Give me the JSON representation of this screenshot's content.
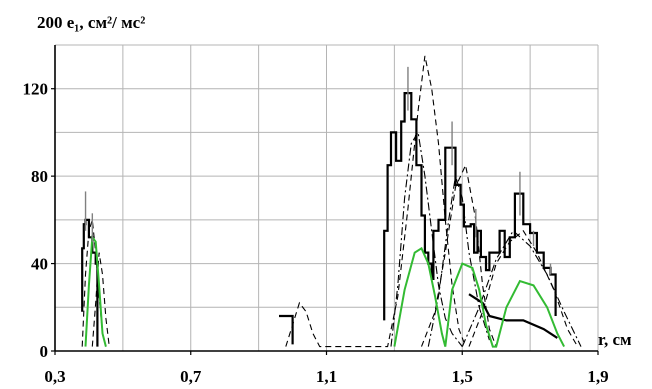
{
  "chart_data": {
    "type": "line",
    "title": "",
    "ylabel": "200 e₁, см²/ мс²",
    "xlabel": "r, см",
    "xlim": [
      0.3,
      1.9
    ],
    "ylim": [
      0,
      140
    ],
    "x_ticks": [
      0.3,
      0.7,
      1.1,
      1.5,
      1.9
    ],
    "x_tick_labels": [
      "0,3",
      "0,7",
      "1,1",
      "1,5",
      "1,9"
    ],
    "y_ticks": [
      0,
      40,
      80,
      120
    ],
    "y_tick_labels": [
      "0",
      "40",
      "80",
      "120"
    ],
    "grid": true,
    "legend": "none",
    "colors": {
      "solid": "#000000",
      "dashed": "#000000",
      "dashdot": "#000000",
      "green": "#33bb33",
      "error": "#808080"
    },
    "series": [
      {
        "style": "solid-step",
        "points": [
          [
            0.38,
            18
          ],
          [
            0.38,
            47
          ],
          [
            0.385,
            47
          ],
          [
            0.385,
            58
          ],
          [
            0.39,
            58
          ],
          [
            0.39,
            60
          ],
          [
            0.4,
            60
          ],
          [
            0.4,
            52
          ],
          [
            0.41,
            52
          ],
          [
            0.41,
            45
          ],
          [
            0.42,
            45
          ],
          [
            0.42,
            40
          ],
          [
            0.425,
            40
          ],
          [
            0.425,
            2
          ],
          [
            0.96,
            16
          ],
          [
            1.0,
            16
          ],
          [
            1.0,
            3
          ],
          [
            1.27,
            14
          ],
          [
            1.27,
            55
          ],
          [
            1.28,
            55
          ],
          [
            1.28,
            85
          ],
          [
            1.29,
            85
          ],
          [
            1.29,
            100
          ],
          [
            1.305,
            100
          ],
          [
            1.305,
            87
          ],
          [
            1.32,
            87
          ],
          [
            1.32,
            105
          ],
          [
            1.33,
            105
          ],
          [
            1.33,
            118
          ],
          [
            1.35,
            118
          ],
          [
            1.35,
            106
          ],
          [
            1.365,
            106
          ],
          [
            1.365,
            85
          ],
          [
            1.38,
            85
          ],
          [
            1.38,
            62
          ],
          [
            1.39,
            62
          ],
          [
            1.39,
            45
          ],
          [
            1.4,
            45
          ],
          [
            1.4,
            40
          ],
          [
            1.41,
            40
          ],
          [
            1.41,
            33
          ],
          [
            1.415,
            33
          ],
          [
            1.415,
            55
          ],
          [
            1.43,
            55
          ],
          [
            1.43,
            60
          ],
          [
            1.45,
            60
          ],
          [
            1.45,
            93
          ],
          [
            1.48,
            93
          ],
          [
            1.48,
            76
          ],
          [
            1.495,
            76
          ],
          [
            1.495,
            67
          ],
          [
            1.505,
            67
          ],
          [
            1.505,
            57
          ],
          [
            1.525,
            57
          ],
          [
            1.525,
            58
          ],
          [
            1.535,
            58
          ],
          [
            1.535,
            45
          ],
          [
            1.545,
            45
          ],
          [
            1.545,
            55
          ],
          [
            1.555,
            55
          ],
          [
            1.555,
            43
          ],
          [
            1.57,
            43
          ],
          [
            1.57,
            37
          ],
          [
            1.58,
            37
          ],
          [
            1.58,
            45
          ],
          [
            1.61,
            45
          ],
          [
            1.61,
            55
          ],
          [
            1.625,
            55
          ],
          [
            1.625,
            43
          ],
          [
            1.64,
            43
          ],
          [
            1.64,
            52
          ],
          [
            1.655,
            52
          ],
          [
            1.655,
            72
          ],
          [
            1.68,
            72
          ],
          [
            1.68,
            58
          ],
          [
            1.7,
            58
          ],
          [
            1.7,
            54
          ],
          [
            1.72,
            54
          ],
          [
            1.72,
            45
          ],
          [
            1.74,
            45
          ],
          [
            1.74,
            38
          ],
          [
            1.76,
            38
          ],
          [
            1.76,
            35
          ],
          [
            1.775,
            35
          ],
          [
            1.775,
            16
          ],
          [
            1.52,
            26
          ],
          [
            1.56,
            22
          ],
          [
            1.58,
            16
          ],
          [
            1.63,
            14
          ],
          [
            1.68,
            14
          ],
          [
            1.74,
            10
          ],
          [
            1.78,
            6
          ]
        ]
      },
      {
        "style": "dashed",
        "points": [
          [
            0.38,
            2
          ],
          [
            0.39,
            35
          ],
          [
            0.4,
            55
          ],
          [
            0.41,
            60
          ],
          [
            0.42,
            45
          ],
          [
            0.43,
            25
          ],
          [
            0.44,
            8
          ],
          [
            0.45,
            2
          ],
          [
            0.41,
            2
          ],
          [
            0.42,
            22
          ],
          [
            0.43,
            45
          ],
          [
            0.44,
            35
          ],
          [
            0.45,
            15
          ],
          [
            0.46,
            2
          ],
          [
            0.98,
            2
          ],
          [
            1.0,
            12
          ],
          [
            1.02,
            22
          ],
          [
            1.04,
            18
          ],
          [
            1.06,
            8
          ],
          [
            1.08,
            2
          ],
          [
            1.28,
            2
          ],
          [
            1.31,
            25
          ],
          [
            1.34,
            65
          ],
          [
            1.37,
            110
          ],
          [
            1.39,
            135
          ],
          [
            1.41,
            120
          ],
          [
            1.43,
            95
          ],
          [
            1.45,
            60
          ],
          [
            1.47,
            30
          ],
          [
            1.49,
            10
          ],
          [
            1.51,
            2
          ],
          [
            1.38,
            2
          ],
          [
            1.42,
            18
          ],
          [
            1.45,
            45
          ],
          [
            1.48,
            75
          ],
          [
            1.51,
            85
          ],
          [
            1.54,
            60
          ],
          [
            1.56,
            30
          ],
          [
            1.58,
            10
          ],
          [
            1.6,
            2
          ],
          [
            1.52,
            2
          ],
          [
            1.56,
            18
          ],
          [
            1.6,
            40
          ],
          [
            1.64,
            50
          ],
          [
            1.68,
            55
          ],
          [
            1.72,
            45
          ],
          [
            1.77,
            28
          ],
          [
            1.81,
            10
          ],
          [
            1.84,
            2
          ]
        ]
      },
      {
        "style": "dash-dot",
        "points": [
          [
            1.29,
            2
          ],
          [
            1.31,
            30
          ],
          [
            1.33,
            70
          ],
          [
            1.35,
            95
          ],
          [
            1.37,
            100
          ],
          [
            1.39,
            80
          ],
          [
            1.41,
            55
          ],
          [
            1.43,
            30
          ],
          [
            1.45,
            15
          ],
          [
            1.47,
            8
          ],
          [
            1.5,
            2
          ],
          [
            1.4,
            2
          ],
          [
            1.43,
            25
          ],
          [
            1.46,
            60
          ],
          [
            1.48,
            80
          ],
          [
            1.5,
            70
          ],
          [
            1.52,
            45
          ],
          [
            1.55,
            20
          ],
          [
            1.58,
            5
          ],
          [
            1.5,
            2
          ],
          [
            1.55,
            20
          ],
          [
            1.6,
            42
          ],
          [
            1.65,
            55
          ],
          [
            1.7,
            48
          ],
          [
            1.75,
            35
          ],
          [
            1.8,
            18
          ],
          [
            1.85,
            2
          ]
        ]
      },
      {
        "style": "green",
        "points": [
          [
            0.39,
            2
          ],
          [
            0.4,
            30
          ],
          [
            0.41,
            52
          ],
          [
            0.42,
            50
          ],
          [
            0.43,
            30
          ],
          [
            0.44,
            8
          ],
          [
            0.45,
            2
          ],
          [
            1.3,
            2
          ],
          [
            1.33,
            28
          ],
          [
            1.36,
            45
          ],
          [
            1.38,
            47
          ],
          [
            1.4,
            40
          ],
          [
            1.42,
            25
          ],
          [
            1.44,
            8
          ],
          [
            1.45,
            2
          ],
          [
            1.45,
            2
          ],
          [
            1.47,
            28
          ],
          [
            1.5,
            40
          ],
          [
            1.53,
            38
          ],
          [
            1.55,
            28
          ],
          [
            1.57,
            12
          ],
          [
            1.59,
            2
          ],
          [
            1.6,
            2
          ],
          [
            1.63,
            20
          ],
          [
            1.67,
            32
          ],
          [
            1.71,
            30
          ],
          [
            1.75,
            20
          ],
          [
            1.78,
            8
          ],
          [
            1.8,
            2
          ]
        ]
      }
    ],
    "error_bars": [
      {
        "x": 0.39,
        "y_low": 55,
        "y_high": 73
      },
      {
        "x": 0.41,
        "y_low": 50,
        "y_high": 63
      },
      {
        "x": 1.34,
        "y_low": 110,
        "y_high": 130
      },
      {
        "x": 1.47,
        "y_low": 85,
        "y_high": 105
      },
      {
        "x": 1.54,
        "y_low": 52,
        "y_high": 65
      },
      {
        "x": 1.67,
        "y_low": 62,
        "y_high": 82
      },
      {
        "x": 1.71,
        "y_low": 48,
        "y_high": 55
      },
      {
        "x": 1.76,
        "y_low": 35,
        "y_high": 40
      }
    ]
  }
}
